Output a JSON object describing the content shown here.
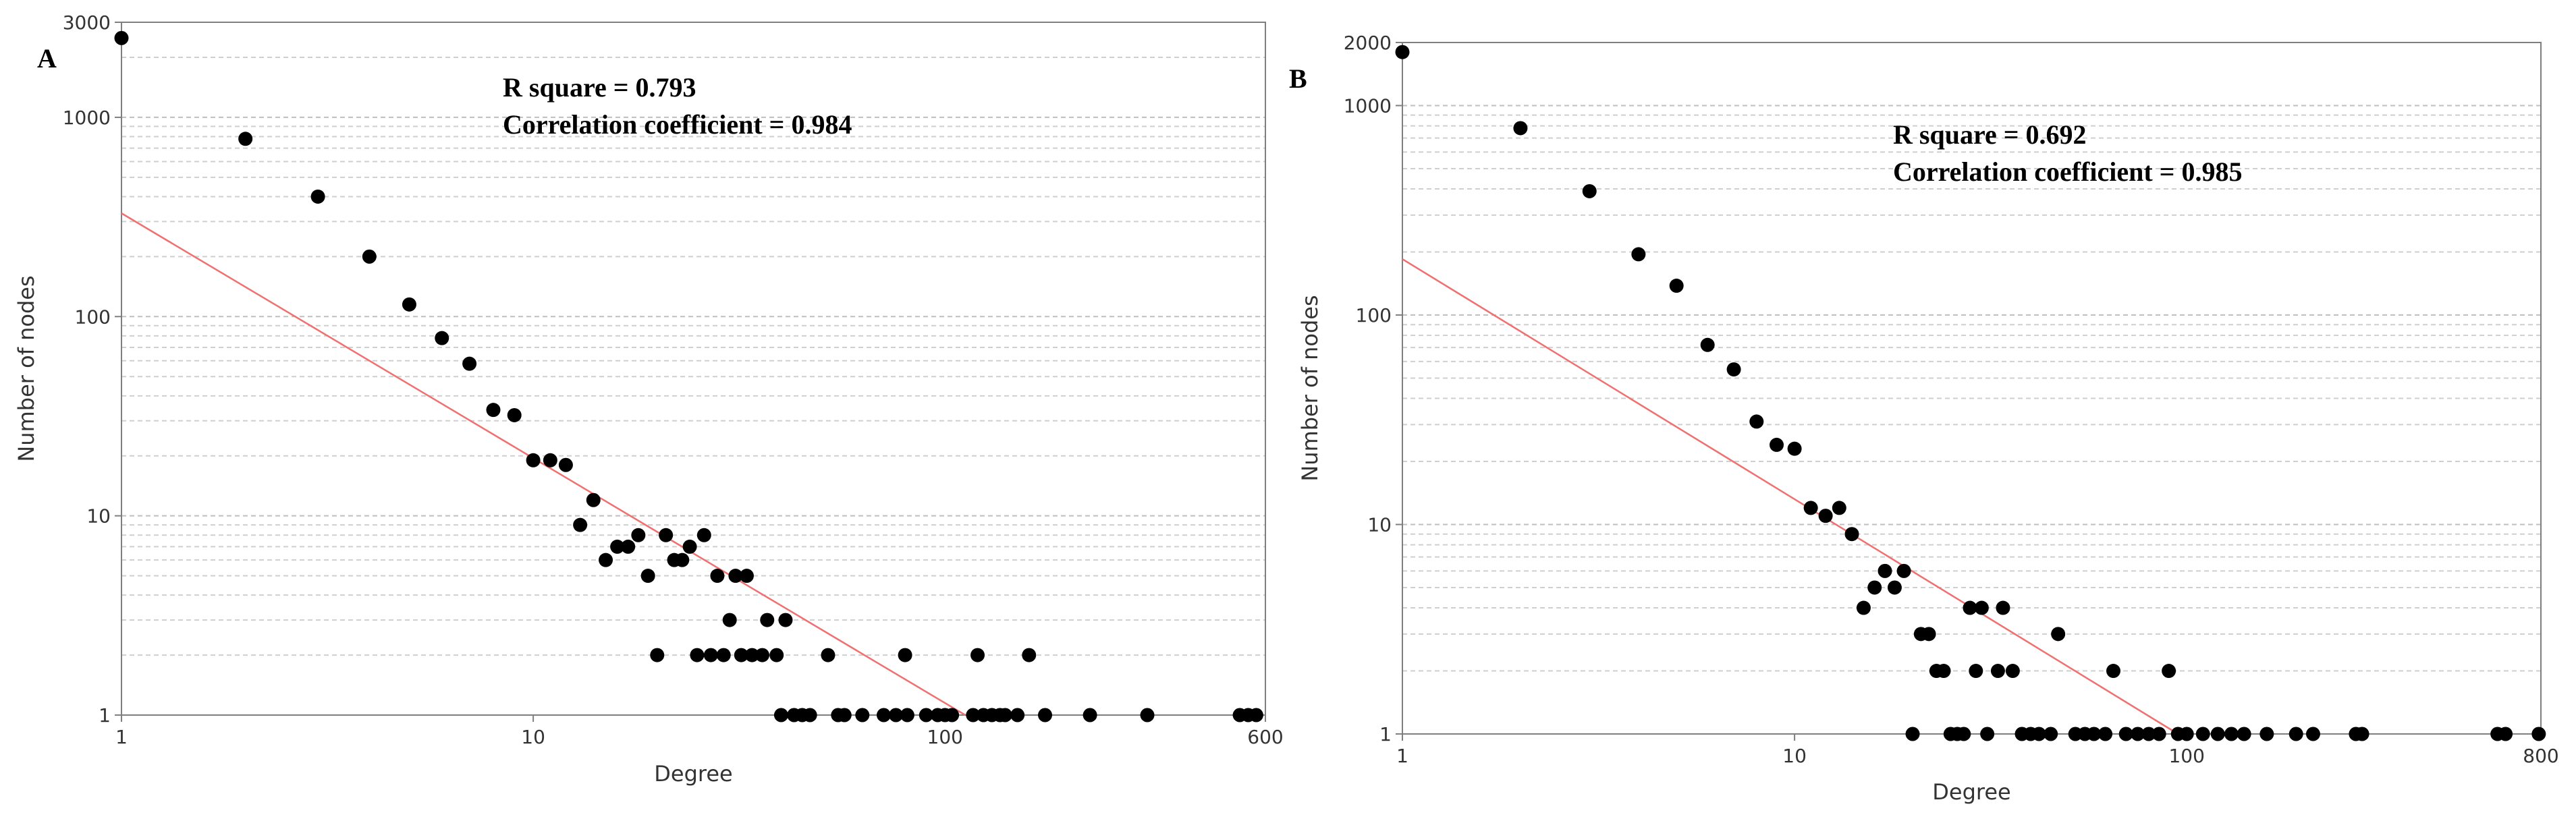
{
  "colors": {
    "background": "#ffffff",
    "frame": "#7f7f7f",
    "major_grid": "#bfbfbf",
    "minor_grid": "#cfcfcf",
    "points": "#000000",
    "fit_line": "#f07070",
    "text": "#333333"
  },
  "chart_data": [
    {
      "type": "scatter",
      "panel_label": "A",
      "xlabel": "Degree",
      "ylabel": "Number of nodes",
      "x_scale": "log",
      "y_scale": "log",
      "xlim": [
        1,
        600
      ],
      "ylim": [
        1,
        3000
      ],
      "x_ticks": [
        {
          "value": 1,
          "label": "1"
        },
        {
          "value": 10,
          "label": "10"
        },
        {
          "value": 100,
          "label": "100"
        },
        {
          "value": 600,
          "label": "600"
        }
      ],
      "y_ticks": [
        {
          "value": 1,
          "label": "1"
        },
        {
          "value": 10,
          "label": "10"
        },
        {
          "value": 100,
          "label": "100"
        },
        {
          "value": 1000,
          "label": "1000"
        },
        {
          "value": 3000,
          "label": "3000"
        }
      ],
      "annotation_lines": [
        "R square = 0.793",
        "Correlation coefficient = 0.984"
      ],
      "fit_line": {
        "x": [
          1,
          112
        ],
        "y": [
          330,
          1
        ]
      },
      "points": [
        [
          1,
          2500
        ],
        [
          2,
          780
        ],
        [
          3,
          400
        ],
        [
          4,
          200
        ],
        [
          5,
          115
        ],
        [
          6,
          78
        ],
        [
          7,
          58
        ],
        [
          8,
          34
        ],
        [
          9,
          32
        ],
        [
          10,
          19
        ],
        [
          11,
          19
        ],
        [
          12,
          18
        ],
        [
          13,
          9
        ],
        [
          14,
          12
        ],
        [
          15,
          6
        ],
        [
          16,
          7
        ],
        [
          17,
          7
        ],
        [
          18,
          8
        ],
        [
          19,
          5
        ],
        [
          20,
          2
        ],
        [
          21,
          8
        ],
        [
          22,
          6
        ],
        [
          23,
          6
        ],
        [
          24,
          7
        ],
        [
          25,
          2
        ],
        [
          26,
          8
        ],
        [
          27,
          2
        ],
        [
          28,
          5
        ],
        [
          29,
          2
        ],
        [
          30,
          3
        ],
        [
          31,
          5
        ],
        [
          32,
          2
        ],
        [
          33,
          5
        ],
        [
          34,
          2
        ],
        [
          36,
          2
        ],
        [
          37,
          3
        ],
        [
          39,
          2
        ],
        [
          41,
          3
        ],
        [
          40,
          1
        ],
        [
          43,
          1
        ],
        [
          45,
          1
        ],
        [
          47,
          1
        ],
        [
          52,
          2
        ],
        [
          55,
          1
        ],
        [
          57,
          1
        ],
        [
          63,
          1
        ],
        [
          71,
          1
        ],
        [
          76,
          1
        ],
        [
          80,
          2
        ],
        [
          81,
          1
        ],
        [
          90,
          1
        ],
        [
          96,
          1
        ],
        [
          100,
          1
        ],
        [
          104,
          1
        ],
        [
          117,
          1
        ],
        [
          120,
          2
        ],
        [
          124,
          1
        ],
        [
          130,
          1
        ],
        [
          136,
          1
        ],
        [
          140,
          1
        ],
        [
          150,
          1
        ],
        [
          160,
          2
        ],
        [
          175,
          1
        ],
        [
          225,
          1
        ],
        [
          310,
          1
        ],
        [
          520,
          1
        ],
        [
          545,
          1
        ],
        [
          570,
          1
        ]
      ]
    },
    {
      "type": "scatter",
      "panel_label": "B",
      "xlabel": "Degree",
      "ylabel": "Number of nodes",
      "x_scale": "log",
      "y_scale": "log",
      "xlim": [
        1,
        800
      ],
      "ylim": [
        1,
        2000
      ],
      "x_ticks": [
        {
          "value": 1,
          "label": "1"
        },
        {
          "value": 10,
          "label": "10"
        },
        {
          "value": 100,
          "label": "100"
        },
        {
          "value": 800,
          "label": "800"
        }
      ],
      "y_ticks": [
        {
          "value": 1,
          "label": "1"
        },
        {
          "value": 10,
          "label": "10"
        },
        {
          "value": 100,
          "label": "100"
        },
        {
          "value": 1000,
          "label": "1000"
        },
        {
          "value": 2000,
          "label": "2000"
        }
      ],
      "annotation_lines": [
        "R square = 0.692",
        "Correlation coefficient = 0.985"
      ],
      "fit_line": {
        "x": [
          1,
          95
        ],
        "y": [
          185,
          1
        ]
      },
      "points": [
        [
          1,
          1800
        ],
        [
          2,
          780
        ],
        [
          3,
          390
        ],
        [
          4,
          195
        ],
        [
          5,
          138
        ],
        [
          6,
          72
        ],
        [
          7,
          55
        ],
        [
          8,
          31
        ],
        [
          9,
          24
        ],
        [
          10,
          23
        ],
        [
          11,
          12
        ],
        [
          12,
          11
        ],
        [
          13,
          12
        ],
        [
          14,
          9
        ],
        [
          15,
          4
        ],
        [
          16,
          5
        ],
        [
          17,
          6
        ],
        [
          18,
          5
        ],
        [
          19,
          6
        ],
        [
          20,
          1
        ],
        [
          21,
          3
        ],
        [
          22,
          3
        ],
        [
          23,
          2
        ],
        [
          24,
          2
        ],
        [
          25,
          1
        ],
        [
          26,
          1
        ],
        [
          27,
          1
        ],
        [
          28,
          4
        ],
        [
          29,
          2
        ],
        [
          30,
          4
        ],
        [
          31,
          1
        ],
        [
          33,
          2
        ],
        [
          34,
          4
        ],
        [
          36,
          2
        ],
        [
          38,
          1
        ],
        [
          40,
          1
        ],
        [
          42,
          1
        ],
        [
          45,
          1
        ],
        [
          47,
          3
        ],
        [
          52,
          1
        ],
        [
          55,
          1
        ],
        [
          58,
          1
        ],
        [
          62,
          1
        ],
        [
          65,
          2
        ],
        [
          70,
          1
        ],
        [
          75,
          1
        ],
        [
          80,
          1
        ],
        [
          85,
          1
        ],
        [
          90,
          2
        ],
        [
          95,
          1
        ],
        [
          100,
          1
        ],
        [
          110,
          1
        ],
        [
          120,
          1
        ],
        [
          130,
          1
        ],
        [
          140,
          1
        ],
        [
          160,
          1
        ],
        [
          190,
          1
        ],
        [
          210,
          1
        ],
        [
          270,
          1
        ],
        [
          280,
          1
        ],
        [
          620,
          1
        ],
        [
          650,
          1
        ],
        [
          790,
          1
        ]
      ]
    }
  ]
}
